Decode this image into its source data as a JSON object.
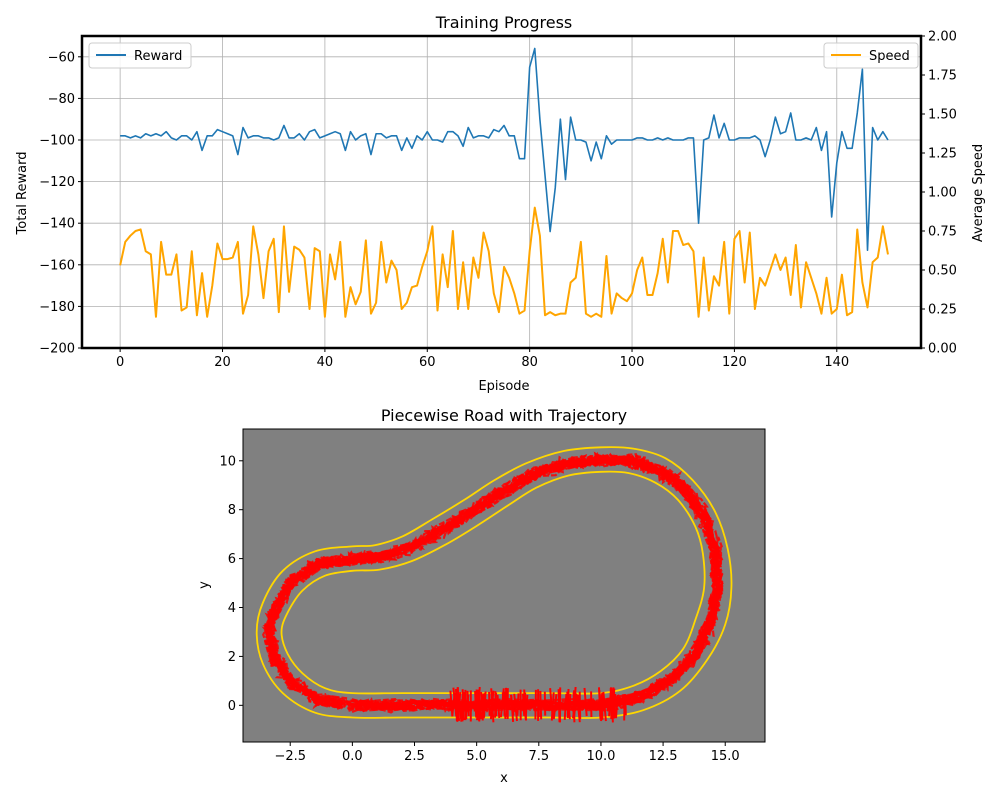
{
  "chart_data": [
    {
      "type": "line",
      "title": "Training Progress",
      "xlabel": "Episode",
      "ylabel_left": "Total Reward",
      "ylabel_right": "Average Speed",
      "xlim": [
        -7.45,
        156.45
      ],
      "ylim_left": [
        -200,
        -50
      ],
      "ylim_right": [
        0.0,
        2.0
      ],
      "x_ticks": [
        0,
        20,
        40,
        60,
        80,
        100,
        120,
        140
      ],
      "y_ticks_left": [
        -200,
        -180,
        -160,
        -140,
        -120,
        -100,
        -80,
        -60
      ],
      "y_ticks_right": [
        0.0,
        0.25,
        0.5,
        0.75,
        1.0,
        1.25,
        1.5,
        1.75,
        2.0
      ],
      "y_tick_labels_right": [
        "0.00",
        "0.25",
        "0.50",
        "0.75",
        "1.00",
        "1.25",
        "1.50",
        "1.75",
        "2.00"
      ],
      "grid": true,
      "series": [
        {
          "name": "Reward",
          "axis": "left",
          "color": "#1f77b4",
          "legend_position": "upper-left",
          "values": [
            -98,
            -98,
            -99,
            -98,
            -99,
            -97,
            -98,
            -97,
            -98,
            -96,
            -99,
            -100,
            -98,
            -98,
            -100,
            -96,
            -105,
            -98,
            -98,
            -95,
            -96,
            -97,
            -98,
            -107,
            -94,
            -99,
            -98,
            -98,
            -99,
            -99,
            -100,
            -99,
            -93,
            -99,
            -99,
            -97,
            -100,
            -96,
            -95,
            -99,
            -98,
            -97,
            -96,
            -97,
            -105,
            -96,
            -100,
            -98,
            -97,
            -107,
            -97,
            -97,
            -99,
            -98,
            -98,
            -105,
            -99,
            -104,
            -98,
            -100,
            -96,
            -100,
            -100,
            -101,
            -96,
            -96,
            -98,
            -103,
            -94,
            -99,
            -98,
            -98,
            -99,
            -95,
            -96,
            -93,
            -98,
            -98,
            -109,
            -109,
            -65,
            -56,
            -90,
            -117,
            -144,
            -123,
            -90,
            -119,
            -89,
            -100,
            -100,
            -101,
            -110,
            -101,
            -109,
            -98,
            -102,
            -100,
            -100,
            -100,
            -100,
            -99,
            -99,
            -100,
            -100,
            -99,
            -100,
            -99,
            -100,
            -100,
            -100,
            -99,
            -99,
            -140,
            -100,
            -99,
            -88,
            -99,
            -92,
            -100,
            -100,
            -99,
            -99,
            -99,
            -98,
            -100,
            -108,
            -100,
            -89,
            -97,
            -96,
            -87,
            -100,
            -100,
            -99,
            -100,
            -94,
            -105,
            -96,
            -137,
            -111,
            -96,
            -104,
            -104,
            -87,
            -66,
            -153,
            -94,
            -100,
            -96,
            -100
          ]
        },
        {
          "name": "Speed",
          "axis": "right",
          "color": "#ffa500",
          "legend_position": "upper-right",
          "values": [
            0.53,
            0.68,
            0.72,
            0.75,
            0.76,
            0.62,
            0.6,
            0.2,
            0.68,
            0.47,
            0.47,
            0.6,
            0.24,
            0.26,
            0.62,
            0.21,
            0.48,
            0.2,
            0.4,
            0.67,
            0.57,
            0.57,
            0.58,
            0.68,
            0.22,
            0.34,
            0.78,
            0.6,
            0.32,
            0.62,
            0.7,
            0.23,
            0.78,
            0.36,
            0.65,
            0.63,
            0.58,
            0.25,
            0.64,
            0.62,
            0.2,
            0.6,
            0.44,
            0.68,
            0.2,
            0.39,
            0.28,
            0.36,
            0.69,
            0.22,
            0.29,
            0.68,
            0.42,
            0.56,
            0.5,
            0.25,
            0.29,
            0.39,
            0.4,
            0.52,
            0.62,
            0.78,
            0.24,
            0.6,
            0.39,
            0.75,
            0.25,
            0.55,
            0.25,
            0.58,
            0.45,
            0.74,
            0.62,
            0.35,
            0.23,
            0.52,
            0.45,
            0.35,
            0.22,
            0.24,
            0.62,
            0.9,
            0.72,
            0.21,
            0.23,
            0.21,
            0.22,
            0.22,
            0.42,
            0.45,
            0.68,
            0.22,
            0.2,
            0.22,
            0.2,
            0.59,
            0.22,
            0.35,
            0.32,
            0.3,
            0.35,
            0.5,
            0.58,
            0.34,
            0.34,
            0.48,
            0.7,
            0.42,
            0.75,
            0.75,
            0.66,
            0.67,
            0.62,
            0.2,
            0.58,
            0.24,
            0.46,
            0.4,
            0.68,
            0.22,
            0.7,
            0.75,
            0.42,
            0.74,
            0.25,
            0.45,
            0.4,
            0.5,
            0.6,
            0.5,
            0.58,
            0.34,
            0.66,
            0.26,
            0.55,
            0.45,
            0.35,
            0.22,
            0.45,
            0.22,
            0.25,
            0.47,
            0.21,
            0.23,
            0.76,
            0.42,
            0.26,
            0.55,
            0.58,
            0.78,
            0.6
          ]
        }
      ]
    },
    {
      "type": "scatter",
      "title": "Piecewise Road with Trajectory",
      "xlabel": "x",
      "ylabel": "y",
      "xlim": [
        -4.4,
        16.6
      ],
      "ylim": [
        -1.5,
        11.3
      ],
      "x_ticks": [
        -2.5,
        0.0,
        2.5,
        5.0,
        7.5,
        10.0,
        12.5,
        15.0
      ],
      "x_tick_labels": [
        "−2.5",
        "0.0",
        "2.5",
        "5.0",
        "7.5",
        "10.0",
        "12.5",
        "15.0"
      ],
      "y_ticks": [
        0,
        2,
        4,
        6,
        8,
        10
      ],
      "background_color": "#808080",
      "road_edge_color": "#ffd700",
      "trajectory_color": "#ff0000",
      "road_centerline": [
        [
          0,
          0
        ],
        [
          2,
          0
        ],
        [
          4,
          0
        ],
        [
          6,
          0
        ],
        [
          8,
          0
        ],
        [
          10,
          0
        ],
        [
          11.5,
          0.3
        ],
        [
          12.8,
          1.0
        ],
        [
          13.8,
          2.1
        ],
        [
          14.4,
          3.4
        ],
        [
          14.7,
          4.8
        ],
        [
          14.6,
          6.3
        ],
        [
          14.2,
          7.6
        ],
        [
          13.4,
          8.8
        ],
        [
          12.4,
          9.6
        ],
        [
          11.2,
          10.0
        ],
        [
          10,
          10.05
        ],
        [
          8.6,
          9.9
        ],
        [
          7.2,
          9.4
        ],
        [
          6.0,
          8.7
        ],
        [
          4.8,
          7.9
        ],
        [
          3.5,
          7.1
        ],
        [
          2.2,
          6.4
        ],
        [
          1.0,
          6.05
        ],
        [
          0,
          6
        ],
        [
          -1.3,
          5.8
        ],
        [
          -2.4,
          5.1
        ],
        [
          -3.1,
          4.0
        ],
        [
          -3.35,
          3.0
        ],
        [
          -3.1,
          1.9
        ],
        [
          -2.4,
          0.9
        ],
        [
          -1.3,
          0.2
        ],
        [
          0,
          0
        ]
      ],
      "road_outer_edge": [
        [
          0,
          -0.5
        ],
        [
          2,
          -0.5
        ],
        [
          4,
          -0.5
        ],
        [
          6,
          -0.5
        ],
        [
          8,
          -0.5
        ],
        [
          10,
          -0.5
        ],
        [
          11.7,
          -0.2
        ],
        [
          13.2,
          0.6
        ],
        [
          14.3,
          1.9
        ],
        [
          15.0,
          3.3
        ],
        [
          15.25,
          4.8
        ],
        [
          15.1,
          6.4
        ],
        [
          14.6,
          7.9
        ],
        [
          13.7,
          9.2
        ],
        [
          12.6,
          10.1
        ],
        [
          11.3,
          10.5
        ],
        [
          10,
          10.55
        ],
        [
          8.5,
          10.4
        ],
        [
          7.0,
          9.9
        ],
        [
          5.7,
          9.2
        ],
        [
          4.5,
          8.4
        ],
        [
          3.2,
          7.6
        ],
        [
          2.0,
          6.9
        ],
        [
          0.9,
          6.55
        ],
        [
          0,
          6.5
        ],
        [
          -1.5,
          6.3
        ],
        [
          -2.8,
          5.5
        ],
        [
          -3.6,
          4.2
        ],
        [
          -3.85,
          3.0
        ],
        [
          -3.6,
          1.7
        ],
        [
          -2.8,
          0.5
        ],
        [
          -1.5,
          -0.3
        ],
        [
          0,
          -0.5
        ]
      ],
      "road_inner_edge": [
        [
          0,
          0.5
        ],
        [
          2,
          0.5
        ],
        [
          4,
          0.5
        ],
        [
          6,
          0.5
        ],
        [
          8,
          0.5
        ],
        [
          10,
          0.5
        ],
        [
          11.3,
          0.8
        ],
        [
          12.4,
          1.4
        ],
        [
          13.3,
          2.3
        ],
        [
          13.8,
          3.5
        ],
        [
          14.15,
          4.8
        ],
        [
          14.1,
          6.2
        ],
        [
          13.8,
          7.3
        ],
        [
          13.1,
          8.4
        ],
        [
          12.2,
          9.1
        ],
        [
          11.1,
          9.5
        ],
        [
          10,
          9.55
        ],
        [
          8.7,
          9.4
        ],
        [
          7.4,
          8.9
        ],
        [
          6.3,
          8.2
        ],
        [
          5.1,
          7.4
        ],
        [
          3.8,
          6.6
        ],
        [
          2.4,
          5.9
        ],
        [
          1.1,
          5.55
        ],
        [
          0,
          5.5
        ],
        [
          -1.1,
          5.3
        ],
        [
          -2.0,
          4.7
        ],
        [
          -2.6,
          3.8
        ],
        [
          -2.85,
          3.0
        ],
        [
          -2.6,
          2.1
        ],
        [
          -2.0,
          1.3
        ],
        [
          -1.1,
          0.7
        ],
        [
          0,
          0.5
        ]
      ]
    }
  ]
}
